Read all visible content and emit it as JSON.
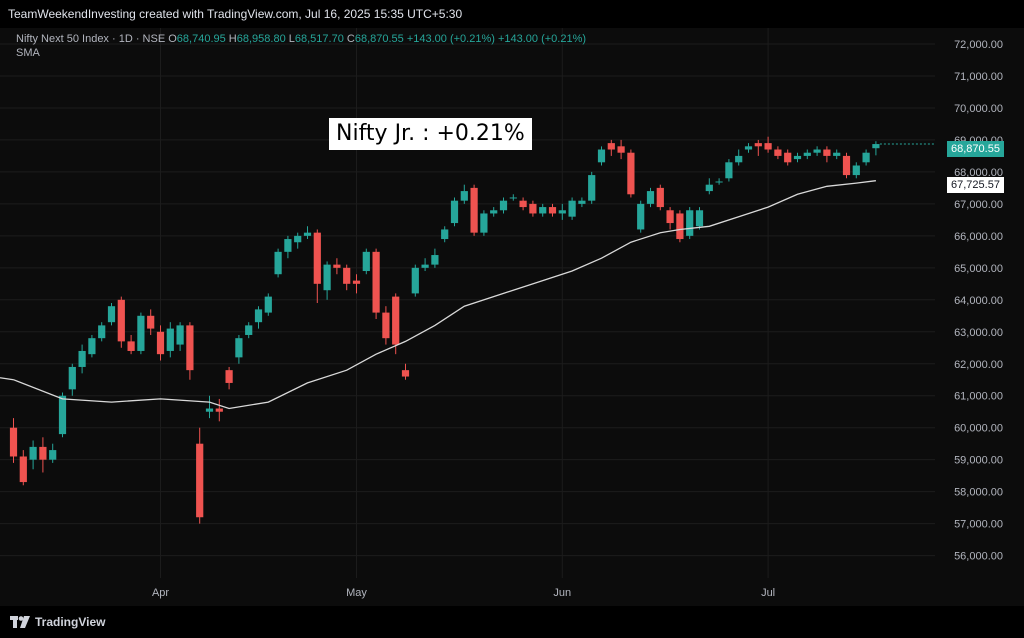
{
  "header": {
    "caption": "TeamWeekendInvesting created with TradingView.com, Jul 16, 2025 15:35 UTC+5:30"
  },
  "legend": {
    "symbol": "Nifty Next 50 Index · 1D · NSE",
    "open_label": "O",
    "open": "68,740.95",
    "high_label": "H",
    "high": "68,958.80",
    "low_label": "L",
    "low": "68,517.70",
    "close_label": "C",
    "close": "68,870.55",
    "change": "+143.00 (+0.21%)",
    "change_repeat": "+143.00 (+0.21%)",
    "indicator": "SMA"
  },
  "annotation": "Nifty Jr. : +0.21%",
  "price_tags": {
    "last": "68,870.55",
    "sma": "67,725.57"
  },
  "footer": {
    "brand": "TradingView"
  },
  "colors": {
    "up": "#26a69a",
    "down": "#ef5350",
    "sma": "#d9d9d9",
    "background": "#0c0c0c",
    "grid": "#1c1c1c"
  },
  "chart_data": {
    "type": "candlestick",
    "y_ticks": [
      56000,
      57000,
      58000,
      59000,
      60000,
      61000,
      62000,
      63000,
      64000,
      65000,
      66000,
      67000,
      68000,
      69000,
      70000,
      71000,
      72000
    ],
    "y_tick_labels": [
      "56,000.00",
      "57,000.00",
      "58,000.00",
      "59,000.00",
      "60,000.00",
      "61,000.00",
      "62,000.00",
      "63,000.00",
      "64,000.00",
      "65,000.00",
      "66,000.00",
      "67,000.00",
      "68,000.00",
      "69,000.00",
      "70,000.00",
      "71,000.00",
      "72,000.00"
    ],
    "ylim": [
      55300,
      72500
    ],
    "x_labels": [
      {
        "label": "Apr",
        "index": 15
      },
      {
        "label": "May",
        "index": 35
      },
      {
        "label": "Jun",
        "index": 56
      },
      {
        "label": "Jul",
        "index": 77
      }
    ],
    "candles": [
      [
        60000,
        59100,
        60300,
        58900
      ],
      [
        59100,
        58300,
        59300,
        58200
      ],
      [
        59000,
        59400,
        59600,
        58700
      ],
      [
        59400,
        59000,
        59700,
        58600
      ],
      [
        59000,
        59300,
        59500,
        58900
      ],
      [
        59800,
        61000,
        61100,
        59700
      ],
      [
        61200,
        61900,
        62000,
        61000
      ],
      [
        61900,
        62400,
        62600,
        61700
      ],
      [
        62300,
        62800,
        62900,
        62200
      ],
      [
        62800,
        63200,
        63300,
        62700
      ],
      [
        63300,
        63800,
        63900,
        63200
      ],
      [
        64000,
        62700,
        64100,
        62500
      ],
      [
        62700,
        62400,
        62900,
        62300
      ],
      [
        62400,
        63500,
        63600,
        62300
      ],
      [
        63500,
        63100,
        63700,
        62900
      ],
      [
        63000,
        62300,
        63200,
        62100
      ],
      [
        62400,
        63100,
        63300,
        62200
      ],
      [
        62600,
        63200,
        63300,
        62400
      ],
      [
        63200,
        61800,
        63300,
        61500
      ],
      [
        59500,
        57200,
        60000,
        57000
      ],
      [
        60500,
        60600,
        61000,
        60300
      ],
      [
        60600,
        60500,
        60900,
        60200
      ],
      [
        61800,
        61400,
        61900,
        61200
      ],
      [
        62200,
        62800,
        62900,
        62000
      ],
      [
        62900,
        63200,
        63300,
        62800
      ],
      [
        63300,
        63700,
        63800,
        63100
      ],
      [
        63600,
        64100,
        64200,
        63500
      ],
      [
        64800,
        65500,
        65600,
        64700
      ],
      [
        65500,
        65900,
        66000,
        65300
      ],
      [
        65800,
        66000,
        66100,
        65600
      ],
      [
        66000,
        66100,
        66300,
        65900
      ],
      [
        66100,
        64500,
        66200,
        63900
      ],
      [
        64300,
        65100,
        65200,
        64000
      ],
      [
        65100,
        65000,
        65300,
        64800
      ],
      [
        65000,
        64500,
        65100,
        64300
      ],
      [
        64600,
        64500,
        64800,
        64200
      ],
      [
        64900,
        65500,
        65600,
        64800
      ],
      [
        65500,
        63600,
        65600,
        63400
      ],
      [
        63600,
        62800,
        63800,
        62600
      ],
      [
        64100,
        62600,
        64200,
        62300
      ],
      [
        61800,
        61600,
        62000,
        61500
      ],
      [
        64200,
        65000,
        65100,
        64100
      ],
      [
        65000,
        65100,
        65300,
        64900
      ],
      [
        65100,
        65400,
        65600,
        65000
      ],
      [
        65900,
        66200,
        66300,
        65800
      ],
      [
        66400,
        67100,
        67200,
        66300
      ],
      [
        67100,
        67400,
        67600,
        67000
      ],
      [
        67500,
        66100,
        67600,
        66000
      ],
      [
        66100,
        66700,
        66800,
        66000
      ],
      [
        66700,
        66800,
        66900,
        66600
      ],
      [
        66800,
        67100,
        67200,
        66700
      ],
      [
        67200,
        67200,
        67300,
        67100
      ],
      [
        67100,
        66900,
        67200,
        66800
      ],
      [
        67000,
        66700,
        67100,
        66600
      ],
      [
        66700,
        66900,
        67000,
        66600
      ],
      [
        66900,
        66700,
        67000,
        66600
      ],
      [
        66700,
        66800,
        67000,
        66500
      ],
      [
        66600,
        67100,
        67200,
        66500
      ],
      [
        67000,
        67100,
        67200,
        66900
      ],
      [
        67100,
        67900,
        68000,
        67000
      ],
      [
        68300,
        68700,
        68800,
        68200
      ],
      [
        68900,
        68700,
        69000,
        68500
      ],
      [
        68800,
        68600,
        69000,
        68400
      ],
      [
        68600,
        67300,
        68700,
        67200
      ],
      [
        66200,
        67000,
        67100,
        66100
      ],
      [
        67000,
        67400,
        67500,
        66900
      ],
      [
        67500,
        66900,
        67600,
        66800
      ],
      [
        66800,
        66400,
        66900,
        66200
      ],
      [
        66700,
        65900,
        66800,
        65800
      ],
      [
        66000,
        66800,
        66900,
        65900
      ],
      [
        66300,
        66800,
        66900,
        66200
      ],
      [
        67400,
        67600,
        67800,
        67300
      ],
      [
        67700,
        67700,
        67800,
        67600
      ],
      [
        67800,
        68300,
        68400,
        67700
      ],
      [
        68300,
        68500,
        68700,
        68200
      ],
      [
        68700,
        68800,
        68900,
        68600
      ],
      [
        68900,
        68800,
        69000,
        68500
      ],
      [
        68900,
        68700,
        69100,
        68600
      ],
      [
        68700,
        68500,
        68800,
        68400
      ],
      [
        68600,
        68300,
        68700,
        68200
      ],
      [
        68400,
        68500,
        68600,
        68300
      ],
      [
        68500,
        68600,
        68700,
        68400
      ],
      [
        68600,
        68700,
        68800,
        68500
      ],
      [
        68700,
        68500,
        68800,
        68300
      ],
      [
        68500,
        68600,
        68700,
        68400
      ],
      [
        68500,
        67900,
        68600,
        67800
      ],
      [
        67900,
        68200,
        68300,
        67800
      ],
      [
        68300,
        68600,
        68700,
        68200
      ],
      [
        68740.95,
        68870.55,
        68958.8,
        68517.7
      ]
    ],
    "sma_points": [
      [
        0,
        61500
      ],
      [
        5,
        60900
      ],
      [
        10,
        60800
      ],
      [
        15,
        60900
      ],
      [
        20,
        60800
      ],
      [
        22,
        60600
      ],
      [
        26,
        60800
      ],
      [
        30,
        61400
      ],
      [
        34,
        61800
      ],
      [
        37,
        62300
      ],
      [
        40,
        62700
      ],
      [
        43,
        63200
      ],
      [
        46,
        63800
      ],
      [
        50,
        64200
      ],
      [
        54,
        64600
      ],
      [
        57,
        64900
      ],
      [
        60,
        65300
      ],
      [
        63,
        65800
      ],
      [
        66,
        66100
      ],
      [
        68,
        66200
      ],
      [
        71,
        66300
      ],
      [
        74,
        66600
      ],
      [
        77,
        66900
      ],
      [
        80,
        67300
      ],
      [
        83,
        67550
      ],
      [
        86,
        67650
      ],
      [
        88,
        67725.57
      ]
    ],
    "grid": true
  }
}
